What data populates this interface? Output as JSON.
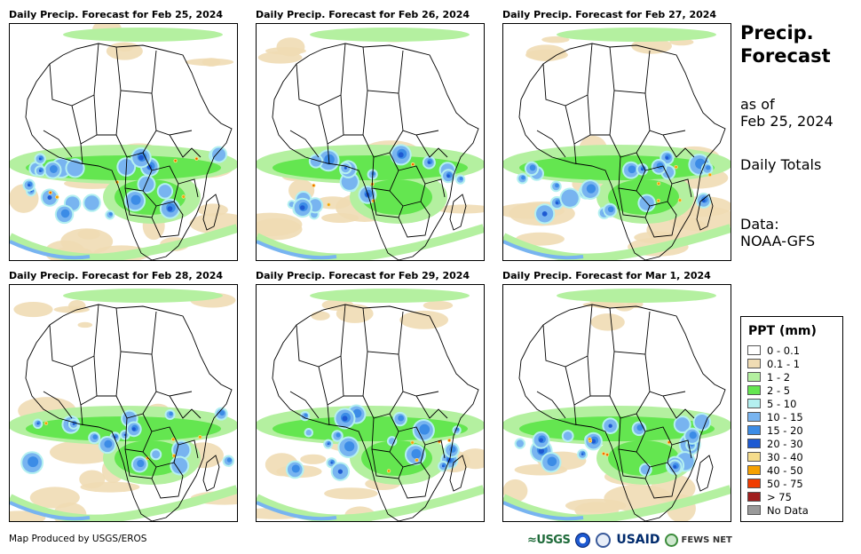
{
  "header": {
    "title": "Precip. Forecast",
    "title_line1": "Precip.",
    "title_line2": "Forecast",
    "asof_line1": "as of",
    "asof_line2": "Feb 25, 2024",
    "totals": "Daily Totals",
    "source_line1": "Data:",
    "source_line2": "NOAA-GFS"
  },
  "panels": [
    {
      "title": "Daily Precip. Forecast for Feb 25, 2024",
      "rain_intensity": 1.0
    },
    {
      "title": "Daily Precip. Forecast for Feb 26, 2024",
      "rain_intensity": 0.85
    },
    {
      "title": "Daily Precip. Forecast for Feb 27, 2024",
      "rain_intensity": 0.9
    },
    {
      "title": "Daily Precip. Forecast for Feb 28, 2024",
      "rain_intensity": 0.75
    },
    {
      "title": "Daily Precip. Forecast for Feb 29, 2024",
      "rain_intensity": 0.8
    },
    {
      "title": "Daily Precip. Forecast for Mar 1, 2024",
      "rain_intensity": 0.85
    }
  ],
  "legend": {
    "title": "PPT (mm)",
    "items": [
      {
        "label": "0 - 0.1",
        "color": "#ffffff"
      },
      {
        "label": "0.1 - 1",
        "color": "#f0dcb4"
      },
      {
        "label": "1 - 2",
        "color": "#b4f0a0"
      },
      {
        "label": "2 - 5",
        "color": "#64e650"
      },
      {
        "label": "5 - 10",
        "color": "#b4f0f0"
      },
      {
        "label": "10 - 15",
        "color": "#78b4f0"
      },
      {
        "label": "15 - 20",
        "color": "#3c8ce6"
      },
      {
        "label": "20 - 30",
        "color": "#1e5ad2"
      },
      {
        "label": "30 - 40",
        "color": "#f5dc8c"
      },
      {
        "label": "40 - 50",
        "color": "#f5a000"
      },
      {
        "label": "50 - 75",
        "color": "#f03c00"
      },
      {
        "label": "> 75",
        "color": "#a01e1e"
      },
      {
        "label": "No Data",
        "color": "#9a9a9a"
      }
    ]
  },
  "footer": {
    "credit": "Map Produced by USGS/EROS",
    "logo_usgs": "≈USGS",
    "logo_usaid": "USAID",
    "logo_fews": "FEWS NET"
  }
}
